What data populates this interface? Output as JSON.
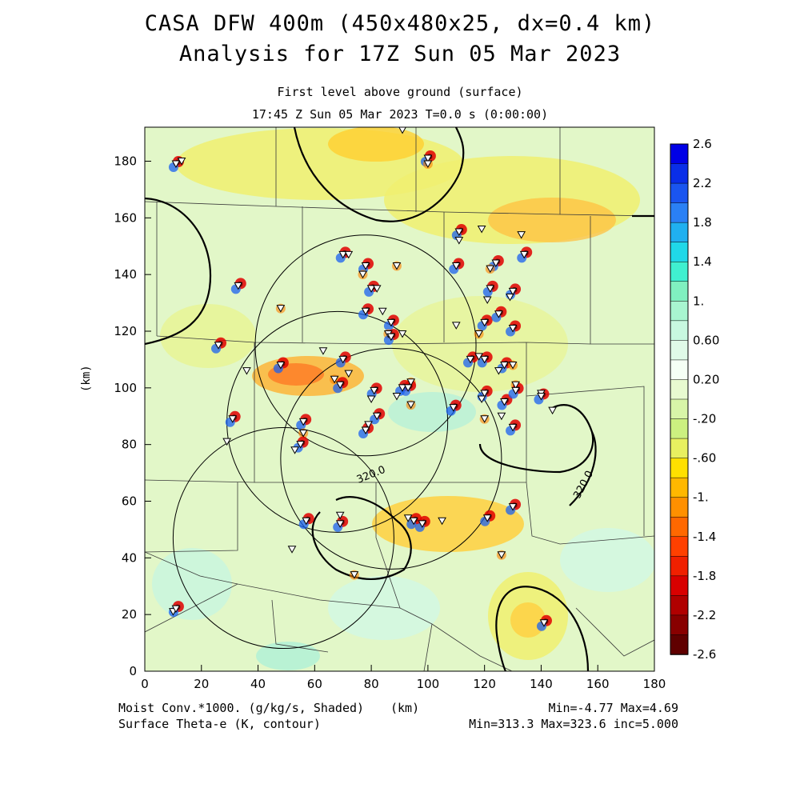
{
  "title": {
    "line1": "CASA DFW 400m (450x480x25, dx=0.4 km)",
    "line2": "Analysis for 17Z Sun 05 Mar 2023",
    "level": "First level above ground (surface)",
    "time": "17:45 Z Sun 05 Mar 2023    T=0.0 s (0:00:00)"
  },
  "axes": {
    "x": {
      "min": 0,
      "max": 180,
      "ticks": [
        "0",
        "20",
        "40",
        "60",
        "80",
        "100",
        "120",
        "140",
        "160",
        "180"
      ]
    },
    "y": {
      "min": 0,
      "max": 192,
      "ticks": [
        "0",
        "20",
        "40",
        "60",
        "80",
        "100",
        "120",
        "140",
        "160",
        "180"
      ],
      "label": "(km)"
    }
  },
  "colorbar": {
    "labels": [
      "2.6",
      "2.2",
      "1.8",
      "1.4",
      "1.",
      "0.60",
      "0.20",
      "-.20",
      "-.60",
      "-1.",
      "-1.4",
      "-1.8",
      "-2.2",
      "-2.6"
    ],
    "colors": [
      "#0000e6",
      "#0a2ee8",
      "#1a55f0",
      "#2a80f5",
      "#20b0f0",
      "#20d8e8",
      "#40f0d0",
      "#80f0c0",
      "#a8f5d0",
      "#c8f8e0",
      "#e0fae8",
      "#f5fff5",
      "#e8fad0",
      "#d8f5a8",
      "#ccf080",
      "#e8f060",
      "#ffe000",
      "#ffb800",
      "#ff9000",
      "#ff6800",
      "#ff4000",
      "#f02000",
      "#d80000",
      "#b00000",
      "#880000",
      "#600000"
    ]
  },
  "footer": {
    "left1": "Moist Conv.*1000. (g/kg/s, Shaded)",
    "left2": "Surface Theta-e (K, contour)",
    "center": "(km)",
    "right1": "Min=-4.77 Max=4.69",
    "right2": "Min=313.3 Max=323.6 inc=5.000"
  },
  "contour_labels": [
    "320.0",
    "320.0"
  ],
  "radar_rings_km": [
    {
      "cx": 78,
      "cy": 115,
      "r": 39
    },
    {
      "cx": 68,
      "cy": 88,
      "r": 39
    },
    {
      "cx": 87,
      "cy": 75,
      "r": 39
    },
    {
      "cx": 49,
      "cy": 47,
      "r": 39
    }
  ],
  "stations_km": [
    [
      11,
      179
    ],
    [
      13,
      180
    ],
    [
      33,
      136
    ],
    [
      48,
      128
    ],
    [
      26,
      115
    ],
    [
      36,
      106
    ],
    [
      48,
      108
    ],
    [
      63,
      113
    ],
    [
      70,
      110
    ],
    [
      67,
      103
    ],
    [
      69,
      101
    ],
    [
      72,
      105
    ],
    [
      31,
      89
    ],
    [
      29,
      81
    ],
    [
      56,
      88
    ],
    [
      56,
      84
    ],
    [
      55,
      80
    ],
    [
      53,
      78
    ],
    [
      70,
      147
    ],
    [
      72,
      147
    ],
    [
      78,
      143
    ],
    [
      77,
      140
    ],
    [
      80,
      135
    ],
    [
      82,
      135
    ],
    [
      78,
      127
    ],
    [
      84,
      127
    ],
    [
      87,
      123
    ],
    [
      86,
      119
    ],
    [
      87,
      118
    ],
    [
      91,
      119
    ],
    [
      81,
      99
    ],
    [
      80,
      96
    ],
    [
      91,
      100
    ],
    [
      94,
      102
    ],
    [
      93,
      100
    ],
    [
      89,
      97
    ],
    [
      82,
      90
    ],
    [
      79,
      87
    ],
    [
      78,
      85
    ],
    [
      94,
      94
    ],
    [
      110,
      143
    ],
    [
      111,
      152
    ],
    [
      111,
      155
    ],
    [
      119,
      156
    ],
    [
      124,
      144
    ],
    [
      122,
      142
    ],
    [
      122,
      135
    ],
    [
      121,
      131
    ],
    [
      120,
      123
    ],
    [
      129,
      132
    ],
    [
      125,
      126
    ],
    [
      118,
      119
    ],
    [
      130,
      134
    ],
    [
      133,
      154
    ],
    [
      134,
      147
    ],
    [
      110,
      122
    ],
    [
      130,
      121
    ],
    [
      89,
      143
    ],
    [
      120,
      110
    ],
    [
      118,
      111
    ],
    [
      115,
      110
    ],
    [
      125,
      106
    ],
    [
      127,
      108
    ],
    [
      130,
      108
    ],
    [
      120,
      98
    ],
    [
      119,
      96
    ],
    [
      127,
      95
    ],
    [
      126,
      90
    ],
    [
      130,
      86
    ],
    [
      131,
      101
    ],
    [
      131,
      99
    ],
    [
      140,
      98
    ],
    [
      140,
      97
    ],
    [
      144,
      92
    ],
    [
      109,
      93
    ],
    [
      120,
      89
    ],
    [
      98,
      52
    ],
    [
      93,
      54
    ],
    [
      95,
      53
    ],
    [
      105,
      53
    ],
    [
      121,
      54
    ],
    [
      126,
      41
    ],
    [
      130,
      58
    ],
    [
      69,
      55
    ],
    [
      69,
      52
    ],
    [
      52,
      43
    ],
    [
      57,
      53
    ],
    [
      74,
      34
    ],
    [
      141,
      17
    ],
    [
      10,
      21
    ],
    [
      11,
      22
    ],
    [
      91,
      191
    ],
    [
      100,
      181
    ],
    [
      100,
      179
    ]
  ]
}
